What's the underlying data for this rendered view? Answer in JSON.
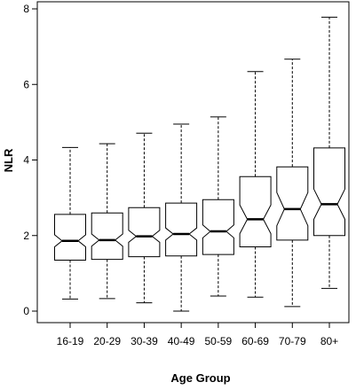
{
  "chart_data": {
    "type": "boxplot",
    "notched": true,
    "title": "",
    "xlabel": "Age Group",
    "ylabel": "NLR",
    "ylim": [
      0,
      8
    ],
    "y_ticks": [
      0,
      2,
      4,
      6,
      8
    ],
    "grid": false,
    "categories": [
      "16-19",
      "20-29",
      "30-39",
      "40-49",
      "50-59",
      "60-69",
      "70-79",
      "80+"
    ],
    "boxes": [
      {
        "whisker_low": 0.32,
        "q1": 1.35,
        "median": 1.86,
        "q3": 2.56,
        "whisker_high": 4.33,
        "notch_low": 1.7,
        "notch_high": 2.02
      },
      {
        "whisker_low": 0.33,
        "q1": 1.37,
        "median": 1.88,
        "q3": 2.6,
        "whisker_high": 4.43,
        "notch_low": 1.72,
        "notch_high": 2.04
      },
      {
        "whisker_low": 0.22,
        "q1": 1.44,
        "median": 1.98,
        "q3": 2.74,
        "whisker_high": 4.71,
        "notch_low": 1.82,
        "notch_high": 2.14
      },
      {
        "whisker_low": 0.0,
        "q1": 1.46,
        "median": 2.04,
        "q3": 2.86,
        "whisker_high": 4.95,
        "notch_low": 1.88,
        "notch_high": 2.2
      },
      {
        "whisker_low": 0.4,
        "q1": 1.5,
        "median": 2.11,
        "q3": 2.95,
        "whisker_high": 5.14,
        "notch_low": 1.94,
        "notch_high": 2.28
      },
      {
        "whisker_low": 0.37,
        "q1": 1.7,
        "median": 2.43,
        "q3": 3.56,
        "whisker_high": 6.34,
        "notch_low": 2.05,
        "notch_high": 2.81
      },
      {
        "whisker_low": 0.12,
        "q1": 1.88,
        "median": 2.7,
        "q3": 3.82,
        "whisker_high": 6.67,
        "notch_low": 2.26,
        "notch_high": 3.14
      },
      {
        "whisker_low": 0.6,
        "q1": 2.0,
        "median": 2.83,
        "q3": 4.32,
        "whisker_high": 7.78,
        "notch_low": 2.43,
        "notch_high": 3.23
      }
    ]
  }
}
